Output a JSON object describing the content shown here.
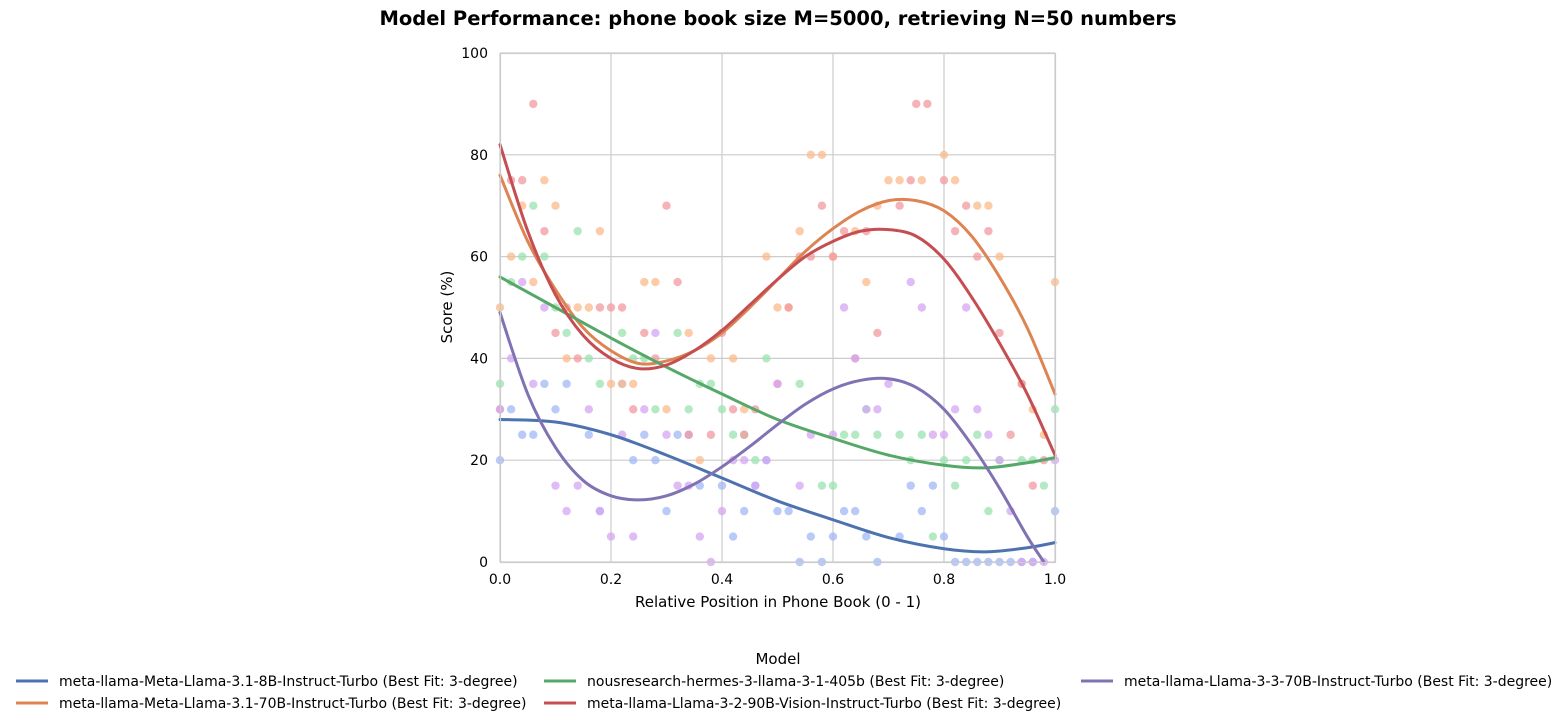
{
  "chart_data": {
    "type": "scatter",
    "title": "Model Performance: phone book size M=5000, retrieving N=50 numbers",
    "xlabel": "Relative Position in Phone Book (0 - 1)",
    "ylabel": "Score (%)",
    "xlim": [
      0,
      1
    ],
    "ylim": [
      0,
      100
    ],
    "xticks": [
      "0.0",
      "0.2",
      "0.4",
      "0.6",
      "0.8",
      "1.0"
    ],
    "yticks": [
      "0",
      "20",
      "40",
      "60",
      "80",
      "100"
    ],
    "grid": true,
    "legend": {
      "title": "Model",
      "placement": "bottom-center"
    },
    "series": [
      {
        "name": "meta-llama-Meta-Llama-3.1-8B-Instruct-Turbo (Best Fit: 3-degree)",
        "color": "#4c72b0",
        "point_color": "#a1b8f6",
        "fit_points": [
          [
            0,
            28
          ],
          [
            0.1,
            27.5
          ],
          [
            0.2,
            25
          ],
          [
            0.3,
            21
          ],
          [
            0.4,
            16.5
          ],
          [
            0.5,
            12
          ],
          [
            0.6,
            8.3
          ],
          [
            0.7,
            4.8
          ],
          [
            0.8,
            2.6
          ],
          [
            0.875,
            2
          ],
          [
            0.95,
            2.8
          ],
          [
            1,
            3.8
          ]
        ],
        "points": [
          [
            0,
            20
          ],
          [
            0.02,
            30
          ],
          [
            0.04,
            25
          ],
          [
            0.06,
            25
          ],
          [
            0.08,
            35
          ],
          [
            0.1,
            30
          ],
          [
            0.12,
            35
          ],
          [
            0.16,
            25
          ],
          [
            0.18,
            10
          ],
          [
            0.22,
            35
          ],
          [
            0.24,
            20
          ],
          [
            0.26,
            25
          ],
          [
            0.28,
            20
          ],
          [
            0.3,
            10
          ],
          [
            0.32,
            25
          ],
          [
            0.34,
            25
          ],
          [
            0.36,
            15
          ],
          [
            0.4,
            15
          ],
          [
            0.42,
            5
          ],
          [
            0.44,
            10
          ],
          [
            0.46,
            15
          ],
          [
            0.48,
            20
          ],
          [
            0.5,
            10
          ],
          [
            0.52,
            10
          ],
          [
            0.54,
            0
          ],
          [
            0.56,
            5
          ],
          [
            0.58,
            0
          ],
          [
            0.6,
            5
          ],
          [
            0.62,
            10
          ],
          [
            0.64,
            10
          ],
          [
            0.66,
            5
          ],
          [
            0.68,
            0
          ],
          [
            0.72,
            5
          ],
          [
            0.74,
            15
          ],
          [
            0.76,
            10
          ],
          [
            0.78,
            15
          ],
          [
            0.8,
            5
          ],
          [
            0.82,
            0
          ],
          [
            0.84,
            0
          ],
          [
            0.86,
            0
          ],
          [
            0.88,
            0
          ],
          [
            0.9,
            0
          ],
          [
            0.92,
            0
          ],
          [
            0.94,
            0
          ],
          [
            0.96,
            0
          ],
          [
            1,
            10
          ]
        ]
      },
      {
        "name": "meta-llama-Meta-Llama-3.1-70B-Instruct-Turbo (Best Fit: 3-degree)",
        "color": "#dd8452",
        "point_color": "#fbb98a",
        "fit_points": [
          [
            0,
            76
          ],
          [
            0.05,
            63
          ],
          [
            0.1,
            53.5
          ],
          [
            0.15,
            46
          ],
          [
            0.2,
            41.5
          ],
          [
            0.25,
            39
          ],
          [
            0.3,
            39.5
          ],
          [
            0.35,
            41.5
          ],
          [
            0.4,
            45
          ],
          [
            0.45,
            50
          ],
          [
            0.5,
            55.5
          ],
          [
            0.55,
            61
          ],
          [
            0.6,
            65.5
          ],
          [
            0.65,
            69
          ],
          [
            0.7,
            71
          ],
          [
            0.75,
            71
          ],
          [
            0.8,
            69
          ],
          [
            0.85,
            64
          ],
          [
            0.9,
            56
          ],
          [
            0.95,
            46
          ],
          [
            1,
            33
          ]
        ],
        "points": [
          [
            0,
            50
          ],
          [
            0.02,
            60
          ],
          [
            0.04,
            70
          ],
          [
            0.06,
            55
          ],
          [
            0.08,
            75
          ],
          [
            0.1,
            70
          ],
          [
            0.12,
            40
          ],
          [
            0.14,
            50
          ],
          [
            0.16,
            50
          ],
          [
            0.18,
            65
          ],
          [
            0.2,
            35
          ],
          [
            0.22,
            35
          ],
          [
            0.24,
            35
          ],
          [
            0.26,
            55
          ],
          [
            0.28,
            55
          ],
          [
            0.3,
            30
          ],
          [
            0.34,
            45
          ],
          [
            0.36,
            20
          ],
          [
            0.38,
            40
          ],
          [
            0.42,
            40
          ],
          [
            0.44,
            30
          ],
          [
            0.48,
            60
          ],
          [
            0.5,
            50
          ],
          [
            0.52,
            50
          ],
          [
            0.54,
            65
          ],
          [
            0.56,
            80
          ],
          [
            0.58,
            80
          ],
          [
            0.6,
            60
          ],
          [
            0.64,
            65
          ],
          [
            0.66,
            55
          ],
          [
            0.68,
            70
          ],
          [
            0.7,
            75
          ],
          [
            0.72,
            75
          ],
          [
            0.76,
            75
          ],
          [
            0.8,
            80
          ],
          [
            0.82,
            75
          ],
          [
            0.86,
            70
          ],
          [
            0.88,
            70
          ],
          [
            0.9,
            60
          ],
          [
            0.94,
            35
          ],
          [
            0.96,
            30
          ],
          [
            0.98,
            25
          ],
          [
            1,
            55
          ]
        ]
      },
      {
        "name": "nousresearch-hermes-3-llama-3-1-405b (Best Fit: 3-degree)",
        "color": "#55a868",
        "point_color": "#9be3af",
        "fit_points": [
          [
            0,
            56
          ],
          [
            0.1,
            50
          ],
          [
            0.2,
            44
          ],
          [
            0.3,
            38.3
          ],
          [
            0.4,
            33
          ],
          [
            0.5,
            28
          ],
          [
            0.6,
            24.3
          ],
          [
            0.7,
            21
          ],
          [
            0.8,
            19
          ],
          [
            0.875,
            18.5
          ],
          [
            0.95,
            19.5
          ],
          [
            1,
            20.5
          ]
        ],
        "points": [
          [
            0,
            35
          ],
          [
            0.02,
            55
          ],
          [
            0.04,
            60
          ],
          [
            0.06,
            70
          ],
          [
            0.08,
            60
          ],
          [
            0.1,
            50
          ],
          [
            0.12,
            45
          ],
          [
            0.14,
            65
          ],
          [
            0.16,
            40
          ],
          [
            0.18,
            35
          ],
          [
            0.22,
            45
          ],
          [
            0.24,
            40
          ],
          [
            0.26,
            40
          ],
          [
            0.28,
            30
          ],
          [
            0.32,
            45
          ],
          [
            0.34,
            30
          ],
          [
            0.36,
            35
          ],
          [
            0.38,
            35
          ],
          [
            0.4,
            30
          ],
          [
            0.42,
            25
          ],
          [
            0.44,
            25
          ],
          [
            0.46,
            20
          ],
          [
            0.48,
            40
          ],
          [
            0.54,
            35
          ],
          [
            0.58,
            15
          ],
          [
            0.6,
            15
          ],
          [
            0.62,
            25
          ],
          [
            0.64,
            25
          ],
          [
            0.66,
            30
          ],
          [
            0.68,
            25
          ],
          [
            0.72,
            25
          ],
          [
            0.74,
            20
          ],
          [
            0.76,
            25
          ],
          [
            0.78,
            5
          ],
          [
            0.8,
            20
          ],
          [
            0.82,
            15
          ],
          [
            0.84,
            20
          ],
          [
            0.86,
            25
          ],
          [
            0.88,
            10
          ],
          [
            0.9,
            20
          ],
          [
            0.94,
            20
          ],
          [
            0.96,
            20
          ],
          [
            0.98,
            15
          ],
          [
            1,
            30
          ]
        ]
      },
      {
        "name": "meta-llama-Llama-3-2-90B-Vision-Instruct-Turbo (Best Fit: 3-degree)",
        "color": "#c44e52",
        "point_color": "#f3999f",
        "fit_points": [
          [
            0,
            82
          ],
          [
            0.05,
            65
          ],
          [
            0.1,
            52.5
          ],
          [
            0.15,
            44.5
          ],
          [
            0.2,
            40
          ],
          [
            0.25,
            38
          ],
          [
            0.3,
            38.7
          ],
          [
            0.35,
            41.5
          ],
          [
            0.4,
            45.5
          ],
          [
            0.45,
            50.5
          ],
          [
            0.5,
            55.5
          ],
          [
            0.55,
            60
          ],
          [
            0.6,
            63
          ],
          [
            0.65,
            65
          ],
          [
            0.7,
            65.3
          ],
          [
            0.75,
            64
          ],
          [
            0.8,
            59.5
          ],
          [
            0.85,
            52
          ],
          [
            0.9,
            43
          ],
          [
            0.95,
            33
          ],
          [
            1,
            21
          ]
        ],
        "points": [
          [
            0,
            30
          ],
          [
            0.02,
            75
          ],
          [
            0.04,
            75
          ],
          [
            0.06,
            90
          ],
          [
            0.08,
            65
          ],
          [
            0.1,
            45
          ],
          [
            0.12,
            50
          ],
          [
            0.14,
            40
          ],
          [
            0.18,
            50
          ],
          [
            0.2,
            50
          ],
          [
            0.22,
            50
          ],
          [
            0.24,
            30
          ],
          [
            0.26,
            45
          ],
          [
            0.28,
            40
          ],
          [
            0.3,
            70
          ],
          [
            0.32,
            55
          ],
          [
            0.34,
            25
          ],
          [
            0.38,
            25
          ],
          [
            0.4,
            45
          ],
          [
            0.42,
            30
          ],
          [
            0.44,
            25
          ],
          [
            0.46,
            30
          ],
          [
            0.5,
            35
          ],
          [
            0.52,
            50
          ],
          [
            0.54,
            60
          ],
          [
            0.56,
            60
          ],
          [
            0.58,
            70
          ],
          [
            0.6,
            60
          ],
          [
            0.62,
            65
          ],
          [
            0.64,
            40
          ],
          [
            0.66,
            65
          ],
          [
            0.68,
            45
          ],
          [
            0.72,
            70
          ],
          [
            0.74,
            75
          ],
          [
            0.75,
            90
          ],
          [
            0.77,
            90
          ],
          [
            0.8,
            75
          ],
          [
            0.82,
            65
          ],
          [
            0.84,
            70
          ],
          [
            0.86,
            60
          ],
          [
            0.88,
            65
          ],
          [
            0.9,
            45
          ],
          [
            0.92,
            25
          ],
          [
            0.94,
            35
          ],
          [
            0.96,
            15
          ],
          [
            0.98,
            20
          ]
        ]
      },
      {
        "name": "meta-llama-Llama-3-3-70B-Instruct-Turbo (Best Fit: 3-degree)",
        "color": "#8172b3",
        "point_color": "#d4a6f2",
        "fit_points": [
          [
            0,
            49
          ],
          [
            0.05,
            33
          ],
          [
            0.1,
            22.5
          ],
          [
            0.15,
            16
          ],
          [
            0.2,
            13
          ],
          [
            0.25,
            12.2
          ],
          [
            0.3,
            13
          ],
          [
            0.35,
            15.3
          ],
          [
            0.4,
            18.7
          ],
          [
            0.45,
            22.7
          ],
          [
            0.5,
            27
          ],
          [
            0.55,
            31
          ],
          [
            0.6,
            34
          ],
          [
            0.65,
            35.7
          ],
          [
            0.7,
            36
          ],
          [
            0.75,
            34.3
          ],
          [
            0.8,
            30
          ],
          [
            0.85,
            23
          ],
          [
            0.9,
            14.5
          ],
          [
            0.95,
            5
          ],
          [
            0.98,
            0
          ]
        ],
        "points": [
          [
            0,
            30
          ],
          [
            0.02,
            40
          ],
          [
            0.04,
            55
          ],
          [
            0.06,
            35
          ],
          [
            0.08,
            50
          ],
          [
            0.1,
            15
          ],
          [
            0.12,
            10
          ],
          [
            0.14,
            15
          ],
          [
            0.16,
            30
          ],
          [
            0.18,
            10
          ],
          [
            0.2,
            5
          ],
          [
            0.22,
            25
          ],
          [
            0.24,
            5
          ],
          [
            0.26,
            30
          ],
          [
            0.28,
            45
          ],
          [
            0.3,
            25
          ],
          [
            0.32,
            15
          ],
          [
            0.34,
            15
          ],
          [
            0.36,
            5
          ],
          [
            0.38,
            0
          ],
          [
            0.4,
            10
          ],
          [
            0.42,
            20
          ],
          [
            0.44,
            20
          ],
          [
            0.46,
            15
          ],
          [
            0.48,
            20
          ],
          [
            0.5,
            35
          ],
          [
            0.54,
            15
          ],
          [
            0.56,
            25
          ],
          [
            0.6,
            25
          ],
          [
            0.62,
            50
          ],
          [
            0.64,
            40
          ],
          [
            0.66,
            30
          ],
          [
            0.68,
            30
          ],
          [
            0.7,
            35
          ],
          [
            0.74,
            55
          ],
          [
            0.76,
            50
          ],
          [
            0.78,
            25
          ],
          [
            0.8,
            25
          ],
          [
            0.82,
            30
          ],
          [
            0.84,
            50
          ],
          [
            0.86,
            30
          ],
          [
            0.88,
            25
          ],
          [
            0.9,
            20
          ],
          [
            0.92,
            10
          ],
          [
            0.94,
            0
          ],
          [
            0.96,
            0
          ],
          [
            0.98,
            0
          ],
          [
            1,
            20
          ]
        ]
      }
    ]
  }
}
